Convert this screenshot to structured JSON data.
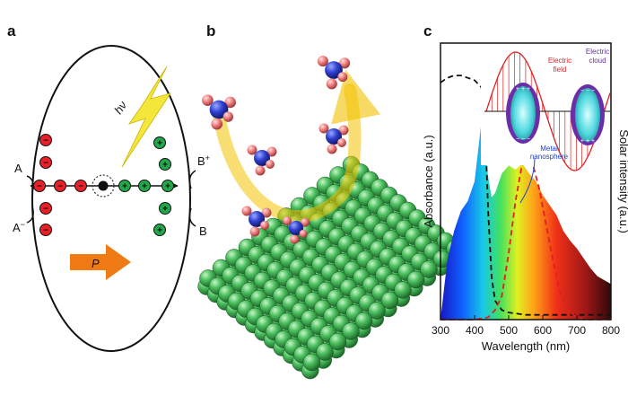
{
  "panels": {
    "a": {
      "label": "a",
      "left_top": "A",
      "left_bottom": "A",
      "left_bottom_sup": "−",
      "right_top": "B",
      "right_top_sup": "+",
      "right_bottom": "B",
      "photon": "hν",
      "arrow": "P",
      "negative_sign": "−",
      "positive_sign": "+",
      "colors": {
        "electron": "#e8202a",
        "hole": "#22a84a",
        "arrow": "#f07a14",
        "bolt": "#f5e63a"
      }
    },
    "b": {
      "label": "b",
      "colors": {
        "sphere": "#4cc060",
        "nitrogen": "#3040d0",
        "oxygen": "#f08080",
        "arrow": "#f2c200"
      }
    },
    "c": {
      "label": "c",
      "x_title": "Wavelength (nm)",
      "y_left_title": "Absorbance (a.u.)",
      "y_right_title": "Solar intensity (a.u.)",
      "x_ticks": [
        "300",
        "400",
        "500",
        "600",
        "700",
        "800"
      ],
      "inset": {
        "electric_field": [
          "Electric",
          "field"
        ],
        "electric_cloud": [
          "Electric",
          "cloud"
        ],
        "metal_nanosphere": [
          "Metal",
          "nanosphere"
        ]
      }
    }
  },
  "chart_data": {
    "type": "line",
    "xlabel": "Wavelength (nm)",
    "ylabel": "Absorbance (a.u.)",
    "y2label": "Solar intensity (a.u.)",
    "xlim": [
      300,
      800
    ],
    "series": [
      {
        "style": "solar spectrum (filled, rainbow)",
        "color": "spectral",
        "x": [
          300,
          320,
          340,
          360,
          380,
          400,
          410,
          420,
          430,
          440,
          450,
          460,
          480,
          500,
          520,
          540,
          560,
          580,
          600,
          620,
          640,
          660,
          680,
          700,
          720,
          740,
          760,
          780,
          800
        ],
        "y": [
          0.0,
          0.3,
          0.45,
          0.55,
          0.6,
          0.7,
          0.85,
          1.0,
          0.88,
          0.72,
          0.62,
          0.64,
          0.74,
          0.78,
          0.76,
          0.79,
          0.74,
          0.7,
          0.63,
          0.58,
          0.53,
          0.45,
          0.4,
          0.36,
          0.31,
          0.26,
          0.22,
          0.2,
          0.18
        ]
      },
      {
        "style": "dashed",
        "color": "#111111",
        "x": [
          300,
          320,
          340,
          360,
          380,
          400,
          420,
          430,
          440,
          450,
          460,
          480,
          500,
          550,
          600,
          650,
          700,
          750,
          800
        ],
        "y": [
          1.0,
          1.02,
          1.03,
          1.03,
          1.02,
          1.01,
          0.98,
          0.85,
          0.45,
          0.18,
          0.08,
          0.04,
          0.03,
          0.02,
          0.02,
          0.02,
          0.02,
          0.02,
          0.02
        ]
      },
      {
        "style": "dashed",
        "color": "#e02020",
        "x": [
          300,
          350,
          400,
          440,
          460,
          480,
          500,
          520,
          540,
          555,
          570,
          590,
          610,
          630,
          650,
          670,
          690,
          720,
          760,
          800
        ],
        "y": [
          0.0,
          0.0,
          0.0,
          0.01,
          0.04,
          0.1,
          0.28,
          0.5,
          0.66,
          0.7,
          0.66,
          0.55,
          0.4,
          0.25,
          0.12,
          0.05,
          0.02,
          0.0,
          0.0,
          0.0
        ]
      }
    ]
  }
}
